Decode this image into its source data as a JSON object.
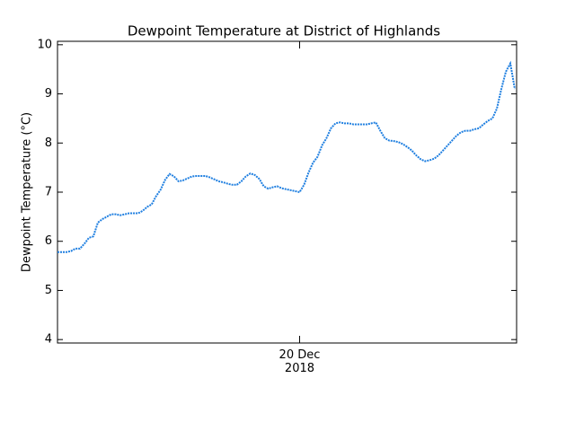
{
  "chart_data": {
    "type": "line",
    "title": "Dewpoint Temperature at District of Highlands",
    "y_label": "Dewpoint Temperature (°C)",
    "categories": [
      null,
      null,
      null,
      null,
      null,
      null,
      null,
      null,
      null,
      null,
      null,
      null,
      null,
      null,
      null,
      null,
      null,
      null,
      null,
      null,
      null,
      null,
      null,
      null,
      null,
      null,
      null,
      null,
      null,
      null,
      null,
      null,
      null,
      null,
      null,
      null,
      null,
      null,
      null,
      null,
      null,
      null,
      null,
      null,
      null,
      null,
      null,
      null,
      null,
      null,
      null,
      null,
      null,
      null,
      "20 Dec\n2018",
      null,
      null,
      null,
      null,
      null,
      null,
      null,
      null,
      null,
      null,
      null,
      null,
      null,
      null,
      null,
      null,
      null,
      null,
      null,
      null,
      null,
      null,
      null,
      null,
      null,
      null,
      null,
      null,
      null,
      null,
      null,
      null,
      null,
      null,
      null,
      null,
      null,
      null,
      null,
      null,
      null,
      null,
      null,
      null,
      null,
      null,
      null,
      null
    ],
    "values": [
      5.78,
      5.78,
      5.78,
      5.8,
      5.85,
      5.85,
      5.95,
      6.07,
      6.1,
      6.38,
      6.45,
      6.5,
      6.55,
      6.55,
      6.53,
      6.55,
      6.57,
      6.57,
      6.57,
      6.62,
      6.7,
      6.75,
      6.92,
      7.05,
      7.25,
      7.37,
      7.32,
      7.22,
      7.24,
      7.28,
      7.32,
      7.33,
      7.33,
      7.33,
      7.3,
      7.26,
      7.22,
      7.2,
      7.17,
      7.15,
      7.15,
      7.22,
      7.32,
      7.38,
      7.35,
      7.27,
      7.12,
      7.07,
      7.1,
      7.12,
      7.08,
      7.06,
      7.04,
      7.02,
      7.0,
      7.15,
      7.4,
      7.6,
      7.72,
      7.95,
      8.1,
      8.3,
      8.4,
      8.42,
      8.4,
      8.4,
      8.38,
      8.38,
      8.38,
      8.38,
      8.4,
      8.42,
      8.25,
      8.1,
      8.05,
      8.04,
      8.02,
      7.98,
      7.92,
      7.85,
      7.75,
      7.67,
      7.63,
      7.65,
      7.68,
      7.75,
      7.85,
      7.95,
      8.05,
      8.15,
      8.22,
      8.25,
      8.25,
      8.28,
      8.3,
      8.38,
      8.45,
      8.5,
      8.7,
      9.1,
      9.45,
      9.62,
      9.1
    ],
    "color": "#1f7fe0",
    "ylim": [
      3.93,
      10.07
    ],
    "yticks": [
      4,
      5,
      6,
      7,
      8,
      9,
      10
    ]
  }
}
